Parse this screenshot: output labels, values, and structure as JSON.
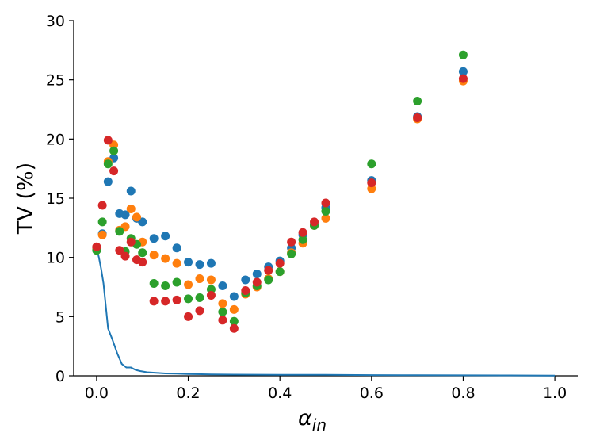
{
  "chart_data": {
    "type": "scatter",
    "title": "",
    "xlabel_base": "α",
    "xlabel_sub": "in",
    "ylabel": "TV (%)",
    "xlim": [
      -0.05,
      1.05
    ],
    "ylim": [
      0,
      30
    ],
    "xticks": [
      0.0,
      0.2,
      0.4,
      0.6,
      0.8,
      1.0
    ],
    "xtick_labels": [
      "0.0",
      "0.2",
      "0.4",
      "0.6",
      "0.8",
      "1.0"
    ],
    "yticks": [
      0,
      5,
      10,
      15,
      20,
      25,
      30
    ],
    "ytick_labels": [
      "0",
      "5",
      "10",
      "15",
      "20",
      "25",
      "30"
    ],
    "grid": false,
    "legend": "none",
    "colors": [
      "#1f77b4",
      "#ff7f0e",
      "#2ca02c",
      "#d62728"
    ],
    "x": [
      0.0,
      0.0125,
      0.025,
      0.0375,
      0.05,
      0.0625,
      0.075,
      0.0875,
      0.1,
      0.125,
      0.15,
      0.175,
      0.2,
      0.225,
      0.25,
      0.275,
      0.3,
      0.325,
      0.35,
      0.375,
      0.4,
      0.425,
      0.45,
      0.475,
      0.5,
      0.6,
      0.7,
      0.8
    ],
    "series": [
      {
        "color": "#1f77b4",
        "marker": "point",
        "values": [
          10.8,
          12.0,
          16.4,
          18.4,
          13.7,
          13.6,
          15.6,
          13.3,
          13.0,
          11.6,
          11.8,
          10.8,
          9.6,
          9.4,
          9.5,
          7.6,
          6.7,
          8.1,
          8.6,
          9.2,
          9.7,
          10.8,
          11.9,
          12.8,
          14.2,
          16.5,
          21.9,
          25.7
        ]
      },
      {
        "color": "#ff7f0e",
        "marker": "point",
        "values": [
          10.7,
          11.9,
          18.1,
          19.5,
          12.3,
          12.6,
          14.1,
          13.4,
          11.3,
          10.2,
          9.9,
          9.5,
          7.7,
          8.2,
          8.1,
          6.1,
          5.6,
          6.9,
          7.5,
          8.2,
          8.8,
          10.4,
          11.2,
          12.7,
          13.3,
          15.8,
          21.7,
          24.9
        ]
      },
      {
        "color": "#2ca02c",
        "marker": "point",
        "values": [
          10.6,
          13.0,
          17.9,
          19.0,
          12.2,
          10.5,
          11.6,
          11.1,
          10.4,
          7.8,
          7.6,
          7.9,
          6.5,
          6.6,
          7.3,
          5.4,
          4.6,
          7.0,
          7.6,
          8.1,
          8.8,
          10.3,
          11.5,
          12.7,
          13.9,
          17.9,
          23.2,
          27.1
        ]
      },
      {
        "color": "#d62728",
        "marker": "point",
        "values": [
          10.9,
          14.4,
          19.9,
          17.3,
          10.6,
          10.1,
          11.3,
          9.8,
          9.6,
          6.3,
          6.3,
          6.4,
          5.0,
          5.5,
          6.8,
          4.7,
          4.0,
          7.2,
          7.9,
          8.9,
          9.5,
          11.3,
          12.1,
          13.0,
          14.6,
          16.3,
          21.8,
          25.1
        ]
      },
      {
        "color": "#1f77b4",
        "marker": "line",
        "x": [
          0.0,
          0.005,
          0.01,
          0.015,
          0.025,
          0.035,
          0.045,
          0.055,
          0.065,
          0.075,
          0.085,
          0.095,
          0.11,
          0.13,
          0.15,
          0.175,
          0.2,
          0.25,
          0.3,
          0.4,
          0.5,
          0.6,
          0.7,
          0.8,
          0.9,
          1.0
        ],
        "values": [
          10.8,
          10.0,
          9.0,
          7.8,
          4.0,
          3.0,
          1.9,
          1.0,
          0.7,
          0.7,
          0.5,
          0.4,
          0.3,
          0.25,
          0.2,
          0.18,
          0.15,
          0.12,
          0.1,
          0.08,
          0.08,
          0.06,
          0.05,
          0.04,
          0.03,
          0.02
        ]
      }
    ]
  }
}
